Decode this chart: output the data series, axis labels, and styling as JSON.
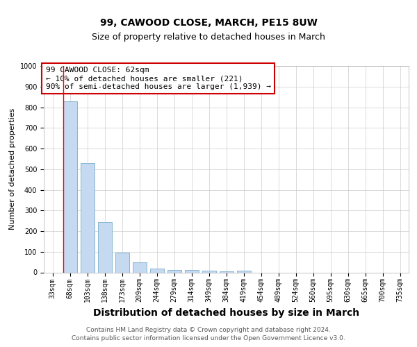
{
  "title": "99, CAWOOD CLOSE, MARCH, PE15 8UW",
  "subtitle": "Size of property relative to detached houses in March",
  "xlabel": "Distribution of detached houses by size in March",
  "ylabel": "Number of detached properties",
  "categories": [
    "33sqm",
    "68sqm",
    "103sqm",
    "138sqm",
    "173sqm",
    "209sqm",
    "244sqm",
    "279sqm",
    "314sqm",
    "349sqm",
    "384sqm",
    "419sqm",
    "454sqm",
    "489sqm",
    "524sqm",
    "560sqm",
    "595sqm",
    "630sqm",
    "665sqm",
    "700sqm",
    "735sqm"
  ],
  "values": [
    0,
    830,
    530,
    245,
    95,
    50,
    18,
    13,
    12,
    8,
    5,
    8,
    0,
    0,
    0,
    0,
    0,
    0,
    0,
    0,
    0
  ],
  "bar_color": "#c5d9f1",
  "bar_edge_color": "#7aaecc",
  "ylim": [
    0,
    1000
  ],
  "yticks": [
    0,
    100,
    200,
    300,
    400,
    500,
    600,
    700,
    800,
    900,
    1000
  ],
  "red_line_index": 1,
  "annotation_line1": "99 CAWOOD CLOSE: 62sqm",
  "annotation_line2": "← 10% of detached houses are smaller (221)",
  "annotation_line3": "90% of semi-detached houses are larger (1,939) →",
  "annotation_box_color": "#ffffff",
  "annotation_box_edge_color": "#cc0000",
  "footer_line1": "Contains HM Land Registry data © Crown copyright and database right 2024.",
  "footer_line2": "Contains public sector information licensed under the Open Government Licence v3.0.",
  "title_fontsize": 10,
  "subtitle_fontsize": 9,
  "xlabel_fontsize": 10,
  "ylabel_fontsize": 8,
  "tick_fontsize": 7,
  "annotation_fontsize": 8,
  "footer_fontsize": 6.5
}
